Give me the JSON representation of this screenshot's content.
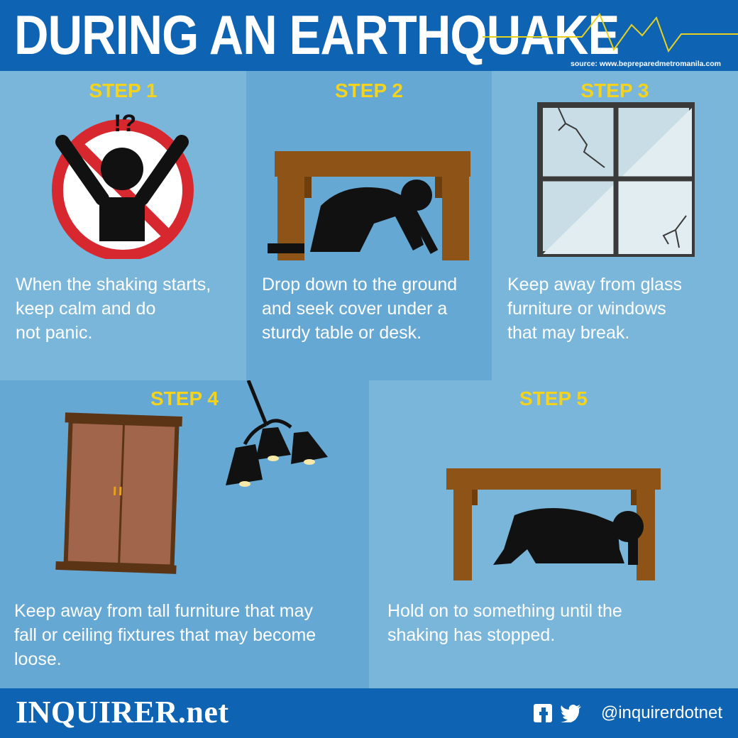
{
  "header": {
    "title": "DURING AN EARTHQUAKE",
    "source": "source: www.bepreparedmetromanila.com"
  },
  "steps": [
    {
      "label": "STEP 1",
      "text": [
        "When the shaking starts,",
        "keep calm and do",
        "not panic."
      ],
      "icon": "no-panic-icon"
    },
    {
      "label": "STEP 2",
      "text": [
        "Drop down to the ground",
        "and seek cover under a",
        "sturdy table or desk."
      ],
      "icon": "drop-cover-icon"
    },
    {
      "label": "STEP 3",
      "text": [
        "Keep away from glass",
        "furniture or windows",
        "that may break."
      ],
      "icon": "cracked-window-icon"
    },
    {
      "label": "STEP 4",
      "text": [
        "Keep away from tall furniture that may",
        "fall or ceiling fixtures that may become",
        "loose."
      ],
      "icon": "wardrobe-lamp-icon"
    },
    {
      "label": "STEP 5",
      "text": [
        "Hold on to something until the",
        "shaking has stopped."
      ],
      "icon": "hold-on-icon"
    }
  ],
  "footer": {
    "brand": "INQUIRER.net",
    "handle": "@inquirerdotnet",
    "social_icons": [
      "facebook-icon",
      "twitter-icon"
    ]
  },
  "colors": {
    "header_blue": "#0e63b3",
    "panel_light": "#7ab6d9",
    "panel_mid": "#65a8d3",
    "step_yellow": "#f3d31d",
    "wood": "#8e5316",
    "no_sign_red": "#d7282f"
  }
}
